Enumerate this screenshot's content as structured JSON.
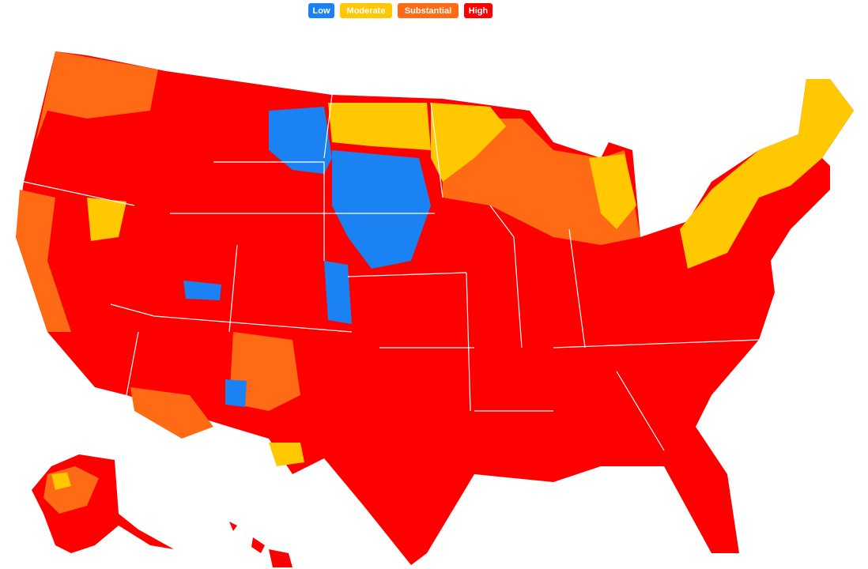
{
  "legend": {
    "items": [
      {
        "label": "Low",
        "color": "#1a82f2"
      },
      {
        "label": "Moderate",
        "color": "#ffc800"
      },
      {
        "label": "Substantial",
        "color": "#ff6a14"
      },
      {
        "label": "High",
        "color": "#ff0000"
      }
    ]
  }
}
